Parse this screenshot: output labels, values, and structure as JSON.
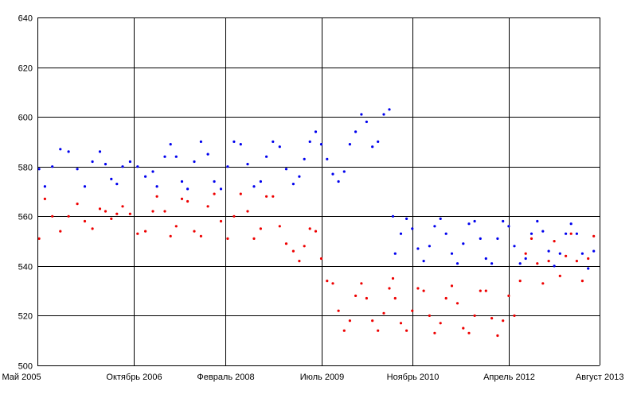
{
  "chart_data": {
    "type": "scatter",
    "title": "",
    "xlabel": "",
    "ylabel": "",
    "ylim": [
      500,
      640
    ],
    "y_ticks": [
      500,
      520,
      540,
      560,
      580,
      600,
      620,
      640
    ],
    "x_ticks": [
      {
        "date": "2005-05-01",
        "label": "Май 2005"
      },
      {
        "date": "2006-10-01",
        "label": "Октябрь 2006"
      },
      {
        "date": "2008-02-01",
        "label": "Февраль 2008"
      },
      {
        "date": "2009-07-01",
        "label": "Июль 2009"
      },
      {
        "date": "2010-11-01",
        "label": "Ноябрь 2010"
      },
      {
        "date": "2012-04-01",
        "label": "Апрель 2012"
      },
      {
        "date": "2013-08-01",
        "label": "Август 2013"
      }
    ],
    "grid": true,
    "legend": "none",
    "series": [
      {
        "color": "#0000ee",
        "points": [
          [
            "2005-05-10",
            579
          ],
          [
            "2005-06-10",
            572
          ],
          [
            "2005-07-20",
            580
          ],
          [
            "2005-09-01",
            587
          ],
          [
            "2005-10-15",
            586
          ],
          [
            "2005-12-01",
            579
          ],
          [
            "2006-01-10",
            572
          ],
          [
            "2006-02-20",
            582
          ],
          [
            "2006-04-01",
            586
          ],
          [
            "2006-05-01",
            581
          ],
          [
            "2006-06-01",
            575
          ],
          [
            "2006-07-01",
            573
          ],
          [
            "2006-08-01",
            580
          ],
          [
            "2006-09-10",
            582
          ],
          [
            "2006-10-20",
            580
          ],
          [
            "2006-12-01",
            576
          ],
          [
            "2007-01-10",
            578
          ],
          [
            "2007-02-01",
            572
          ],
          [
            "2007-03-15",
            584
          ],
          [
            "2007-04-15",
            589
          ],
          [
            "2007-05-15",
            584
          ],
          [
            "2007-06-15",
            574
          ],
          [
            "2007-07-15",
            571
          ],
          [
            "2007-08-20",
            582
          ],
          [
            "2007-09-25",
            590
          ],
          [
            "2007-11-01",
            585
          ],
          [
            "2007-12-05",
            574
          ],
          [
            "2008-01-10",
            571
          ],
          [
            "2008-02-15",
            580
          ],
          [
            "2008-03-20",
            590
          ],
          [
            "2008-04-25",
            589
          ],
          [
            "2008-06-01",
            581
          ],
          [
            "2008-07-05",
            572
          ],
          [
            "2008-08-10",
            574
          ],
          [
            "2008-09-10",
            584
          ],
          [
            "2008-10-15",
            590
          ],
          [
            "2008-11-20",
            588
          ],
          [
            "2008-12-25",
            579
          ],
          [
            "2009-02-01",
            573
          ],
          [
            "2009-03-05",
            576
          ],
          [
            "2009-04-01",
            583
          ],
          [
            "2009-05-01",
            590
          ],
          [
            "2009-06-01",
            594
          ],
          [
            "2009-07-01",
            589
          ],
          [
            "2009-08-01",
            583
          ],
          [
            "2009-09-01",
            577
          ],
          [
            "2009-10-01",
            574
          ],
          [
            "2009-11-01",
            578
          ],
          [
            "2009-12-01",
            589
          ],
          [
            "2010-01-01",
            594
          ],
          [
            "2010-02-01",
            601
          ],
          [
            "2010-03-01",
            598
          ],
          [
            "2010-04-01",
            588
          ],
          [
            "2010-05-01",
            590
          ],
          [
            "2010-06-01",
            601
          ],
          [
            "2010-07-01",
            603
          ],
          [
            "2010-07-20",
            560
          ],
          [
            "2010-08-01",
            545
          ],
          [
            "2010-09-01",
            553
          ],
          [
            "2010-10-01",
            559
          ],
          [
            "2010-11-01",
            555
          ],
          [
            "2010-12-01",
            547
          ],
          [
            "2011-01-01",
            542
          ],
          [
            "2011-02-01",
            548
          ],
          [
            "2011-03-01",
            556
          ],
          [
            "2011-04-01",
            559
          ],
          [
            "2011-05-01",
            553
          ],
          [
            "2011-06-01",
            545
          ],
          [
            "2011-07-01",
            541
          ],
          [
            "2011-08-01",
            549
          ],
          [
            "2011-09-01",
            557
          ],
          [
            "2011-10-01",
            558
          ],
          [
            "2011-11-01",
            551
          ],
          [
            "2011-12-01",
            543
          ],
          [
            "2012-01-01",
            541
          ],
          [
            "2012-02-01",
            551
          ],
          [
            "2012-03-01",
            558
          ],
          [
            "2012-04-01",
            556
          ],
          [
            "2012-05-01",
            548
          ],
          [
            "2012-06-01",
            541
          ],
          [
            "2012-07-01",
            543
          ],
          [
            "2012-08-01",
            553
          ],
          [
            "2012-09-01",
            558
          ],
          [
            "2012-10-01",
            554
          ],
          [
            "2012-11-01",
            546
          ],
          [
            "2012-12-01",
            540
          ],
          [
            "2013-01-01",
            545
          ],
          [
            "2013-02-01",
            553
          ],
          [
            "2013-03-01",
            557
          ],
          [
            "2013-04-01",
            553
          ],
          [
            "2013-05-01",
            545
          ],
          [
            "2013-06-01",
            539
          ],
          [
            "2013-07-01",
            546
          ]
        ]
      },
      {
        "color": "#ee0000",
        "points": [
          [
            "2005-05-10",
            551
          ],
          [
            "2005-06-10",
            567
          ],
          [
            "2005-07-20",
            560
          ],
          [
            "2005-09-01",
            554
          ],
          [
            "2005-10-15",
            560
          ],
          [
            "2005-12-01",
            565
          ],
          [
            "2006-01-10",
            558
          ],
          [
            "2006-02-20",
            555
          ],
          [
            "2006-04-01",
            563
          ],
          [
            "2006-05-01",
            562
          ],
          [
            "2006-06-01",
            559
          ],
          [
            "2006-07-01",
            561
          ],
          [
            "2006-08-01",
            564
          ],
          [
            "2006-09-10",
            561
          ],
          [
            "2006-10-20",
            553
          ],
          [
            "2006-12-01",
            554
          ],
          [
            "2007-01-10",
            562
          ],
          [
            "2007-02-01",
            568
          ],
          [
            "2007-03-15",
            562
          ],
          [
            "2007-04-15",
            552
          ],
          [
            "2007-05-15",
            556
          ],
          [
            "2007-06-15",
            567
          ],
          [
            "2007-07-15",
            566
          ],
          [
            "2007-08-20",
            554
          ],
          [
            "2007-09-25",
            552
          ],
          [
            "2007-11-01",
            564
          ],
          [
            "2007-12-05",
            569
          ],
          [
            "2008-01-10",
            558
          ],
          [
            "2008-02-15",
            551
          ],
          [
            "2008-03-20",
            560
          ],
          [
            "2008-04-25",
            569
          ],
          [
            "2008-06-01",
            562
          ],
          [
            "2008-07-05",
            551
          ],
          [
            "2008-08-10",
            555
          ],
          [
            "2008-09-10",
            568
          ],
          [
            "2008-10-15",
            568
          ],
          [
            "2008-11-20",
            556
          ],
          [
            "2008-12-25",
            549
          ],
          [
            "2009-02-01",
            546
          ],
          [
            "2009-03-05",
            542
          ],
          [
            "2009-04-01",
            548
          ],
          [
            "2009-05-01",
            555
          ],
          [
            "2009-06-01",
            554
          ],
          [
            "2009-07-01",
            543
          ],
          [
            "2009-08-01",
            534
          ],
          [
            "2009-09-01",
            533
          ],
          [
            "2009-10-01",
            522
          ],
          [
            "2009-11-01",
            514
          ],
          [
            "2009-12-01",
            518
          ],
          [
            "2010-01-01",
            528
          ],
          [
            "2010-02-01",
            533
          ],
          [
            "2010-03-01",
            527
          ],
          [
            "2010-04-01",
            518
          ],
          [
            "2010-05-01",
            514
          ],
          [
            "2010-06-01",
            521
          ],
          [
            "2010-07-01",
            531
          ],
          [
            "2010-07-20",
            535
          ],
          [
            "2010-08-01",
            527
          ],
          [
            "2010-09-01",
            517
          ],
          [
            "2010-10-01",
            514
          ],
          [
            "2010-11-01",
            522
          ],
          [
            "2010-12-01",
            531
          ],
          [
            "2011-01-01",
            530
          ],
          [
            "2011-02-01",
            520
          ],
          [
            "2011-03-01",
            513
          ],
          [
            "2011-04-01",
            517
          ],
          [
            "2011-05-01",
            527
          ],
          [
            "2011-06-01",
            532
          ],
          [
            "2011-07-01",
            525
          ],
          [
            "2011-08-01",
            515
          ],
          [
            "2011-09-01",
            513
          ],
          [
            "2011-10-01",
            520
          ],
          [
            "2011-11-01",
            530
          ],
          [
            "2011-12-01",
            530
          ],
          [
            "2012-01-01",
            519
          ],
          [
            "2012-02-01",
            512
          ],
          [
            "2012-03-01",
            518
          ],
          [
            "2012-04-01",
            528
          ],
          [
            "2012-05-01",
            520
          ],
          [
            "2012-06-01",
            534
          ],
          [
            "2012-07-01",
            545
          ],
          [
            "2012-08-01",
            551
          ],
          [
            "2012-09-01",
            541
          ],
          [
            "2012-10-01",
            533
          ],
          [
            "2012-11-01",
            542
          ],
          [
            "2012-12-01",
            550
          ],
          [
            "2013-01-01",
            536
          ],
          [
            "2013-02-01",
            544
          ],
          [
            "2013-03-01",
            553
          ],
          [
            "2013-04-01",
            542
          ],
          [
            "2013-05-01",
            534
          ],
          [
            "2013-06-01",
            543
          ],
          [
            "2013-07-01",
            552
          ]
        ]
      }
    ]
  }
}
